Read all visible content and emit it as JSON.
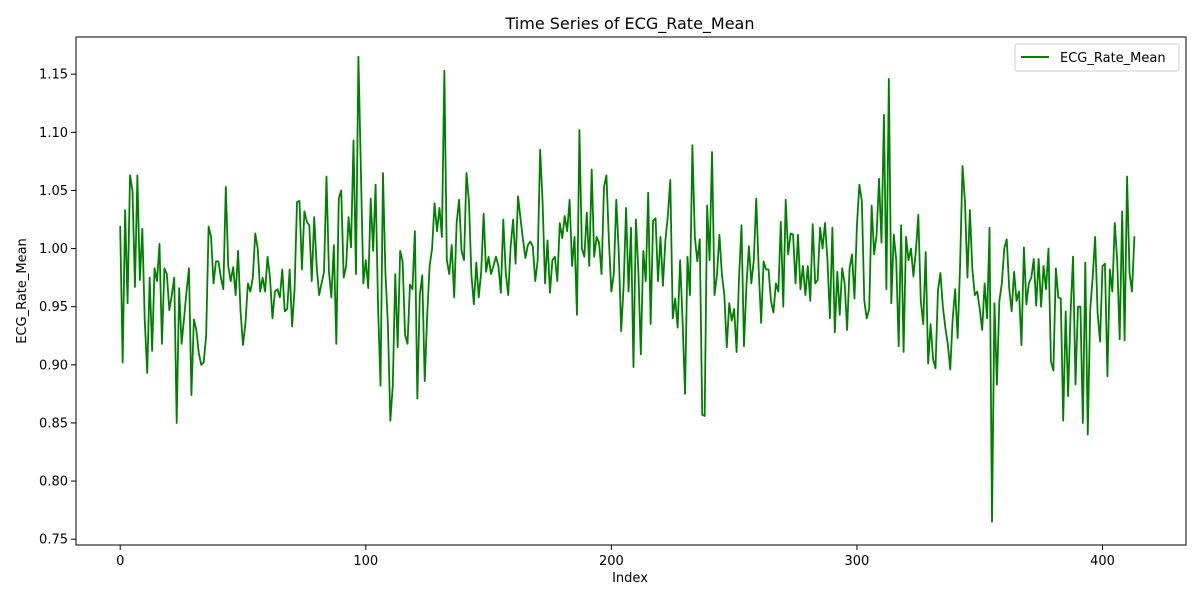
{
  "chart_data": {
    "type": "line",
    "title": "Time Series of ECG_Rate_Mean",
    "xlabel": "Index",
    "ylabel": "ECG_Rate_Mean",
    "xlim": [
      -18,
      434
    ],
    "ylim": [
      0.745,
      1.182
    ],
    "xticks": [
      0,
      100,
      200,
      300,
      400
    ],
    "yticks": [
      0.75,
      0.8,
      0.85,
      0.9,
      0.95,
      1.0,
      1.05,
      1.1,
      1.15
    ],
    "ytick_labels": [
      "0.75",
      "0.80",
      "0.85",
      "0.90",
      "0.95",
      "1.00",
      "1.05",
      "1.10",
      "1.15"
    ],
    "grid": false,
    "legend_position": "top-right",
    "series": [
      {
        "name": "ECG_Rate_Mean",
        "color": "#008000",
        "x_start": 0,
        "x_step": 1,
        "values": [
          1.019,
          0.902,
          1.033,
          0.953,
          1.063,
          1.05,
          0.967,
          1.063,
          0.973,
          1.017,
          0.938,
          0.893,
          0.975,
          0.912,
          0.983,
          0.972,
          1.004,
          0.918,
          0.983,
          0.978,
          0.947,
          0.96,
          0.975,
          0.85,
          0.966,
          0.918,
          0.94,
          0.963,
          0.983,
          0.874,
          0.939,
          0.93,
          0.91,
          0.9,
          0.902,
          0.925,
          1.019,
          1.01,
          0.97,
          0.989,
          0.989,
          0.975,
          0.965,
          1.053,
          0.985,
          0.972,
          0.984,
          0.96,
          0.998,
          0.946,
          0.917,
          0.936,
          0.97,
          0.963,
          0.975,
          1.013,
          1.0,
          0.963,
          0.975,
          0.963,
          0.993,
          0.975,
          0.94,
          0.963,
          0.965,
          0.958,
          0.982,
          0.946,
          0.948,
          0.982,
          0.933,
          0.965,
          1.04,
          1.041,
          0.982,
          1.032,
          1.023,
          1.02,
          0.972,
          1.027,
          0.985,
          0.96,
          0.97,
          0.98,
          1.062,
          0.98,
          0.958,
          1.003,
          0.918,
          1.043,
          1.05,
          0.975,
          0.985,
          1.027,
          1.001,
          1.093,
          0.978,
          1.165,
          1.068,
          0.97,
          0.99,
          0.966,
          1.043,
          0.998,
          1.055,
          0.95,
          0.882,
          1.065,
          0.979,
          0.935,
          0.852,
          0.882,
          0.978,
          0.915,
          0.998,
          0.989,
          0.926,
          0.918,
          0.969,
          0.965,
          1.015,
          0.871,
          0.96,
          0.977,
          0.886,
          0.942,
          0.985,
          1.0,
          1.039,
          1.015,
          1.035,
          1.01,
          1.153,
          0.99,
          0.978,
          1.003,
          0.958,
          1.022,
          1.042,
          0.998,
          0.99,
          1.065,
          1.041,
          0.978,
          0.952,
          0.988,
          0.958,
          0.98,
          1.03,
          0.98,
          0.993,
          0.978,
          0.985,
          0.993,
          0.985,
          0.962,
          1.025,
          0.979,
          0.96,
          1.002,
          1.025,
          0.987,
          1.045,
          1.026,
          1.008,
          0.992,
          1.003,
          1.006,
          1.002,
          0.972,
          0.99,
          1.085,
          1.04,
          0.97,
          1.007,
          0.962,
          0.99,
          0.993,
          0.972,
          1.022,
          1.009,
          1.028,
          1.015,
          1.042,
          0.985,
          1.01,
          0.943,
          1.102,
          1.0,
          0.993,
          1.031,
          0.985,
          1.068,
          0.993,
          1.01,
          1.005,
          0.978,
          1.053,
          1.063,
          1.007,
          0.963,
          0.978,
          1.042,
          0.998,
          0.929,
          0.968,
          1.035,
          0.963,
          1.018,
          0.898,
          1.025,
          0.981,
          0.909,
          0.998,
          0.972,
          1.048,
          0.935,
          1.024,
          1.026,
          0.972,
          1.01,
          0.968,
          1.007,
          1.028,
          1.059,
          0.94,
          0.957,
          0.932,
          0.99,
          0.938,
          0.875,
          0.993,
          0.96,
          1.089,
          1.01,
          0.989,
          1.008,
          0.857,
          0.856,
          1.037,
          0.99,
          1.083,
          0.96,
          0.977,
          1.012,
          0.978,
          0.96,
          0.915,
          0.953,
          0.938,
          0.948,
          0.911,
          0.975,
          1.02,
          0.916,
          0.968,
          1.002,
          0.97,
          0.99,
          1.043,
          0.982,
          0.936,
          0.989,
          0.982,
          0.982,
          0.955,
          0.945,
          0.97,
          0.963,
          1.023,
          0.95,
          1.042,
          0.995,
          1.013,
          1.012,
          0.97,
          1.012,
          0.965,
          0.985,
          0.96,
          0.985,
          0.955,
          1.021,
          0.97,
          0.973,
          1.018,
          1.0,
          1.022,
          0.99,
          0.94,
          1.018,
          0.928,
          0.98,
          0.943,
          0.983,
          0.97,
          0.93,
          0.983,
          0.995,
          0.957,
          1.02,
          1.055,
          1.041,
          0.955,
          0.94,
          0.948,
          1.037,
          0.995,
          1.012,
          1.06,
          1.005,
          1.115,
          0.965,
          1.146,
          0.953,
          1.012,
          0.99,
          0.916,
          1.02,
          0.911,
          1.01,
          0.99,
          1.0,
          0.976,
          0.998,
          1.029,
          0.955,
          0.935,
          0.997,
          0.901,
          0.935,
          0.905,
          0.897,
          0.964,
          0.979,
          0.95,
          0.932,
          0.918,
          0.896,
          0.94,
          0.965,
          0.923,
          0.985,
          1.071,
          1.04,
          0.975,
          1.033,
          0.982,
          0.96,
          0.963,
          0.948,
          0.93,
          0.97,
          0.94,
          1.018,
          0.765,
          0.953,
          0.883,
          0.955,
          0.97,
          1.0,
          1.008,
          0.966,
          0.946,
          0.98,
          0.955,
          0.963,
          0.917,
          1.001,
          0.952,
          0.97,
          0.975,
          0.991,
          0.951,
          0.991,
          0.95,
          0.985,
          0.965,
          1.0,
          0.903,
          0.895,
          0.983,
          0.958,
          0.957,
          0.852,
          0.946,
          0.873,
          0.945,
          0.993,
          0.883,
          0.95,
          0.95,
          0.85,
          0.988,
          0.84,
          0.948,
          0.975,
          1.01,
          0.945,
          0.92,
          0.985,
          0.987,
          0.89,
          0.982,
          0.963,
          1.022,
          0.989,
          0.922,
          1.032,
          0.921,
          1.062,
          0.979,
          0.963,
          1.01
        ]
      }
    ]
  }
}
